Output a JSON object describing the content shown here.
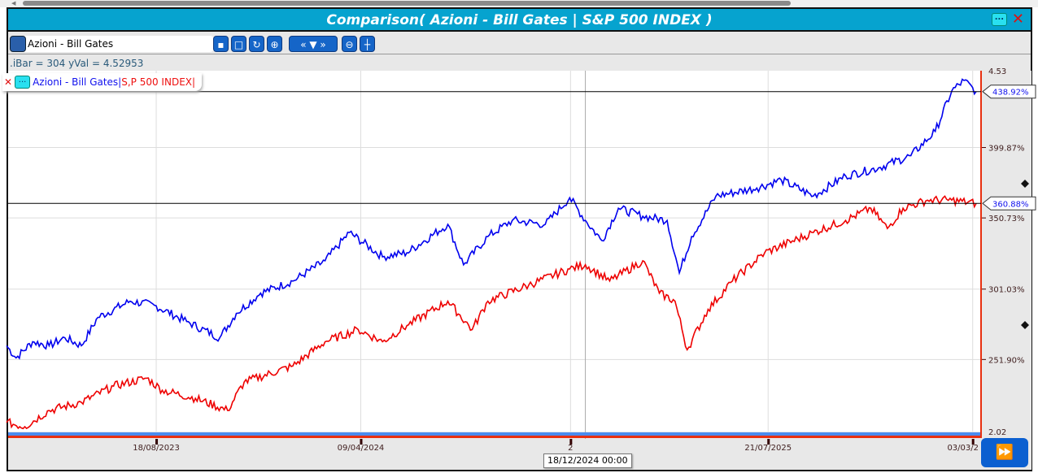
{
  "window": {
    "title": "Comparison( Azioni - Bill Gates | S&P 500 INDEX )",
    "menu_label": "...",
    "close_label": "✕"
  },
  "toolbar": {
    "symbol": "Azioni - Bill Gates",
    "nav_label": "« ▼ »"
  },
  "info": {
    "text": ".iBar = 304 yVal = 4.52953"
  },
  "legend": {
    "close": "✕",
    "menu": "...",
    "series1": "Azioni - Bill Gates|",
    "series2": "S,P 500 INDEX|"
  },
  "tooltip": {
    "text": "18/12/2024 00:00"
  },
  "colors": {
    "series1": "#0000ee",
    "series2": "#ee0000",
    "title_bar": "#06a3cf"
  },
  "chart_data": {
    "type": "line",
    "title": "Comparison( Azioni - Bill Gates | S&P 500 INDEX )",
    "x_unit": "days since 2023-02-27",
    "ylim": [
      201.6,
      453.5
    ],
    "y_ticks": [
      {
        "value": 399.87,
        "label": "399.87%"
      },
      {
        "value": 350.73,
        "label": "350.73%"
      },
      {
        "value": 301.03,
        "label": "301.03%"
      },
      {
        "value": 251.9,
        "label": "251.90%"
      }
    ],
    "y_edge_labels": {
      "top": "4.53",
      "bottom": "2.02"
    },
    "x_ticks": [
      {
        "day": 172,
        "label": "18/08/2023"
      },
      {
        "day": 407,
        "label": "09/04/2024"
      },
      {
        "day": 648,
        "label": "2"
      },
      {
        "day": 875,
        "label": "21/07/2025"
      },
      {
        "day": 1110,
        "label": "03/03/2"
      }
    ],
    "crosshair_day": 665,
    "last_values": [
      {
        "value": 438.92,
        "label": "438.92%"
      },
      {
        "value": 360.88,
        "label": "360.88%"
      }
    ],
    "series": [
      {
        "name": "Azioni - Bill Gates",
        "color": "#0000ee",
        "points": [
          [
            0,
            261.5
          ],
          [
            11,
            253.0
          ],
          [
            30,
            264.3
          ],
          [
            49,
            261.5
          ],
          [
            67,
            267.1
          ],
          [
            86,
            261.5
          ],
          [
            105,
            281.3
          ],
          [
            142,
            292.6
          ],
          [
            170,
            289.7
          ],
          [
            207,
            278.4
          ],
          [
            245,
            267.1
          ],
          [
            264,
            284.1
          ],
          [
            292,
            298.2
          ],
          [
            329,
            306.7
          ],
          [
            366,
            320.8
          ],
          [
            394,
            340.6
          ],
          [
            432,
            323.6
          ],
          [
            460,
            326.4
          ],
          [
            507,
            346.2
          ],
          [
            525,
            318.0
          ],
          [
            553,
            337.7
          ],
          [
            581,
            349.0
          ],
          [
            619,
            346.2
          ],
          [
            647,
            364.8
          ],
          [
            665,
            349.0
          ],
          [
            684,
            334.9
          ],
          [
            703,
            357.5
          ],
          [
            731,
            351.9
          ],
          [
            759,
            349.0
          ],
          [
            773,
            312.3
          ],
          [
            787,
            337.7
          ],
          [
            815,
            366.0
          ],
          [
            862,
            371.6
          ],
          [
            890,
            377.3
          ],
          [
            927,
            366.0
          ],
          [
            964,
            380.1
          ],
          [
            1002,
            385.7
          ],
          [
            1039,
            394.2
          ],
          [
            1067,
            411.1
          ],
          [
            1086,
            439.4
          ],
          [
            1100,
            446.7
          ],
          [
            1114,
            438.92
          ]
        ]
      },
      {
        "name": "S,P 500 INDEX",
        "color": "#ee0000",
        "points": [
          [
            0,
            207.9
          ],
          [
            21,
            205.0
          ],
          [
            49,
            216.3
          ],
          [
            86,
            222.0
          ],
          [
            123,
            233.3
          ],
          [
            161,
            238.9
          ],
          [
            179,
            230.4
          ],
          [
            217,
            224.8
          ],
          [
            254,
            216.3
          ],
          [
            273,
            236.1
          ],
          [
            329,
            247.4
          ],
          [
            366,
            264.3
          ],
          [
            404,
            272.8
          ],
          [
            432,
            264.3
          ],
          [
            460,
            275.6
          ],
          [
            507,
            292.6
          ],
          [
            535,
            272.8
          ],
          [
            553,
            292.6
          ],
          [
            600,
            303.9
          ],
          [
            647,
            315.1
          ],
          [
            665,
            318.0
          ],
          [
            693,
            306.7
          ],
          [
            731,
            320.8
          ],
          [
            750,
            298.2
          ],
          [
            768,
            292.6
          ],
          [
            782,
            258.7
          ],
          [
            806,
            286.9
          ],
          [
            834,
            306.7
          ],
          [
            871,
            326.4
          ],
          [
            927,
            340.6
          ],
          [
            964,
            349.0
          ],
          [
            993,
            357.5
          ],
          [
            1012,
            343.4
          ],
          [
            1030,
            357.5
          ],
          [
            1058,
            363.1
          ],
          [
            1086,
            363.1
          ],
          [
            1114,
            360.88
          ]
        ]
      }
    ]
  }
}
